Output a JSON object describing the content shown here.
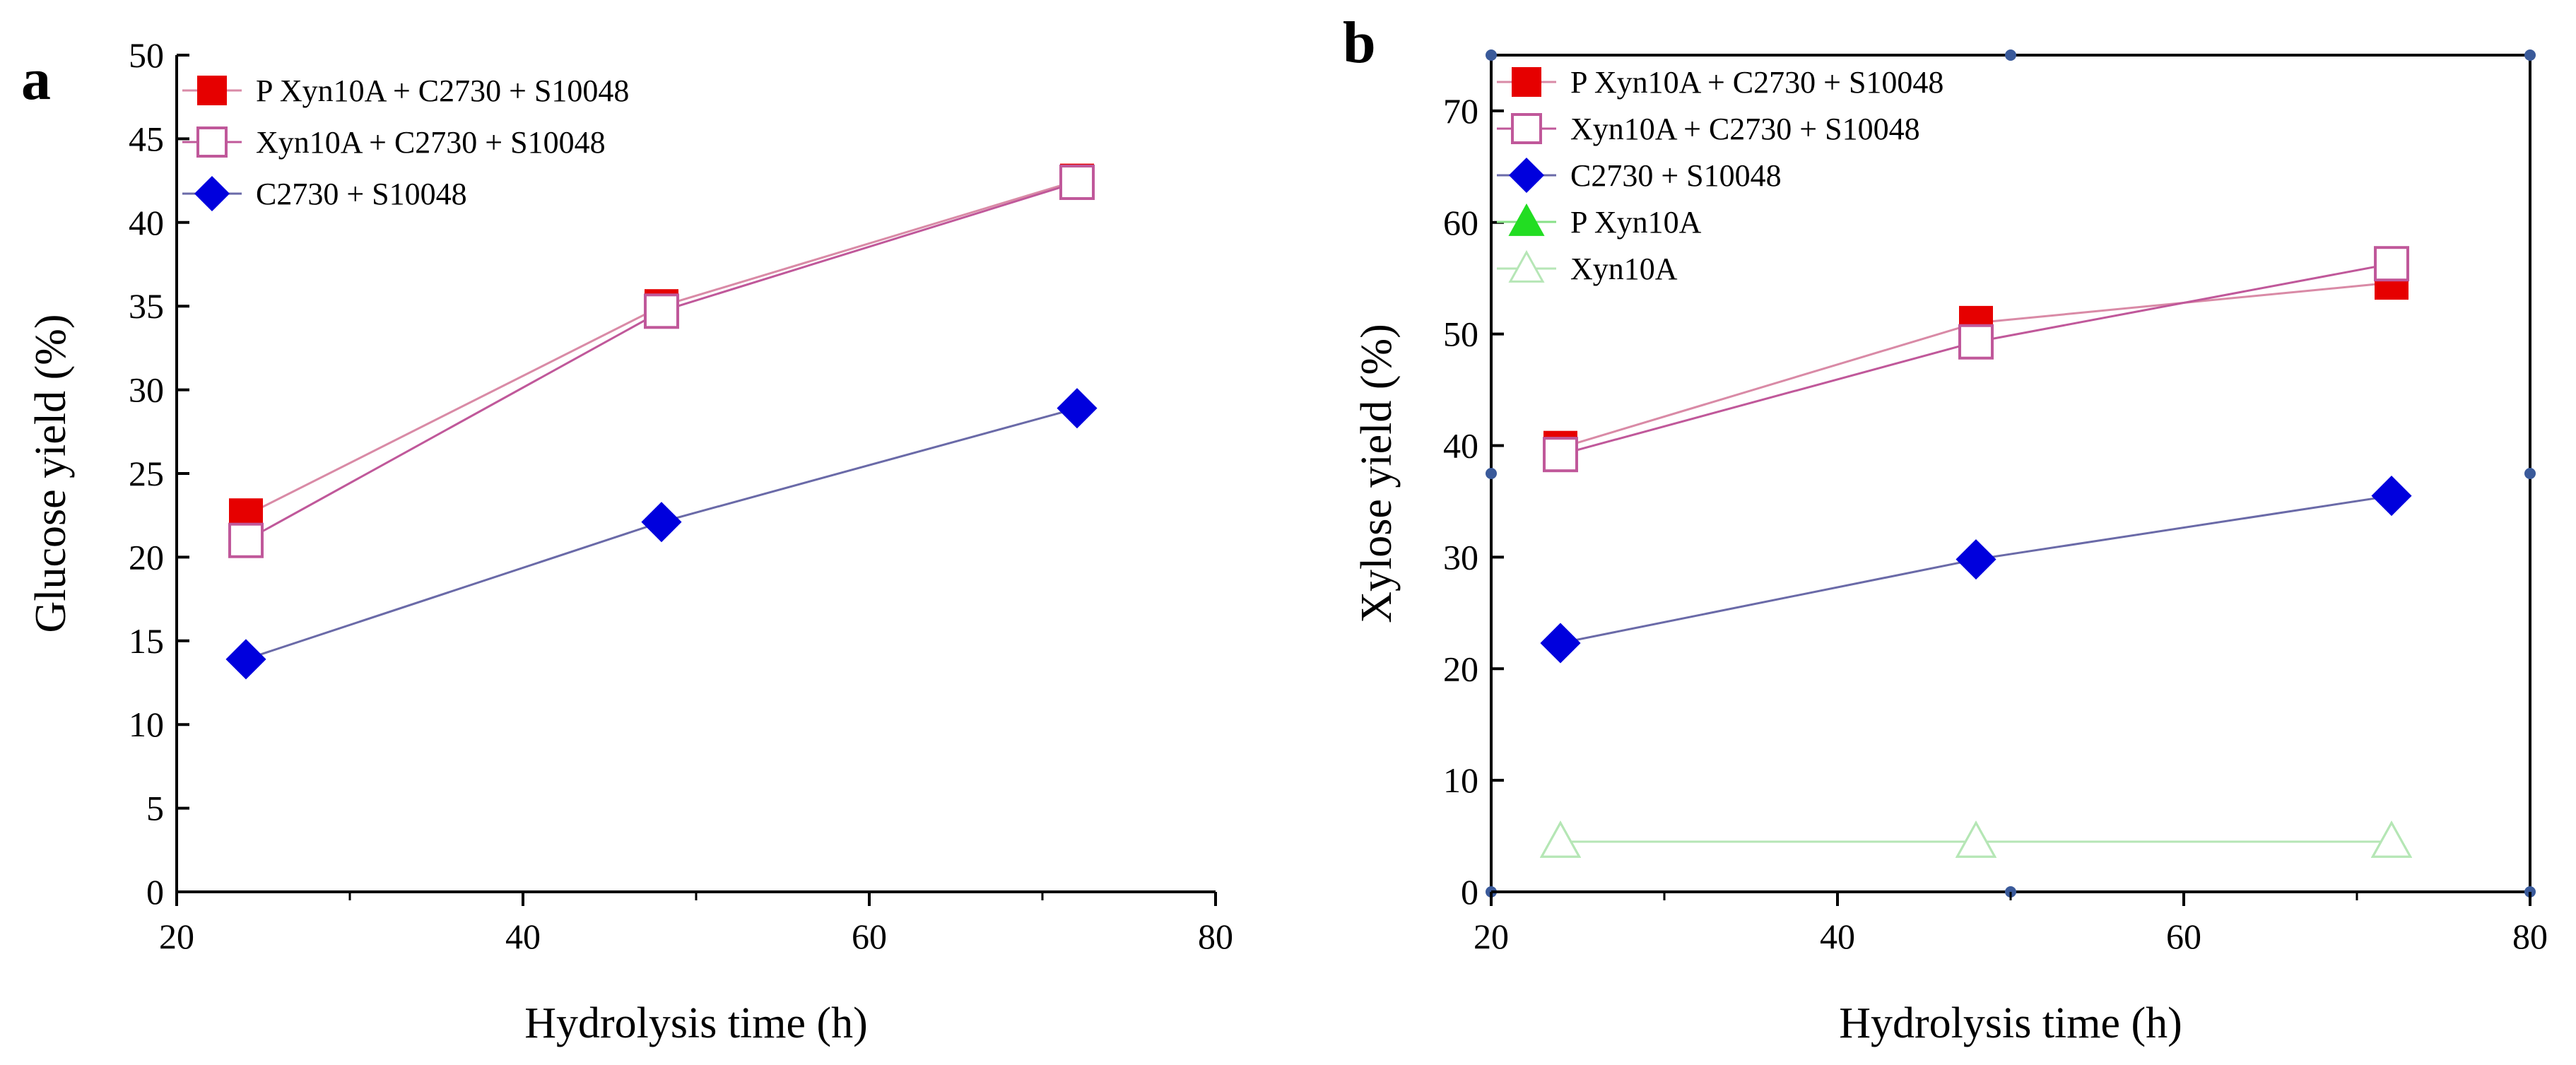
{
  "colors": {
    "red": "#e60000",
    "pink": "#c0589a",
    "blue": "#0000dd",
    "blue_line": "#6a6aa8",
    "green": "#22dd22",
    "green_line": "#88e088",
    "light_green": "#b6e6b6"
  },
  "chart_data": [
    {
      "type": "line",
      "panel_label": "a",
      "xlabel": "Hydrolysis time (h)",
      "ylabel": "Glucose yield (%)",
      "xlim": [
        20,
        80
      ],
      "ylim": [
        0,
        50
      ],
      "xticks": [
        "20",
        "40",
        "60",
        "80"
      ],
      "yticks": [
        "0",
        "5",
        "10",
        "15",
        "20",
        "25",
        "30",
        "35",
        "40",
        "45",
        "50"
      ],
      "legend_position": "top-left",
      "grid": false,
      "series": [
        {
          "name": "P Xyn10A + C2730 + S10048",
          "x": [
            24,
            48,
            72
          ],
          "y": [
            22.5,
            35.0,
            42.5
          ],
          "marker": "square-filled",
          "color": "#e60000",
          "line_color": "#d98aa6"
        },
        {
          "name": "Xyn10A + C2730 + S10048",
          "x": [
            24,
            48,
            72
          ],
          "y": [
            21.0,
            34.7,
            42.4
          ],
          "marker": "square-open",
          "color": "#c0589a",
          "line_color": "#c0589a"
        },
        {
          "name": "C2730 + S10048",
          "x": [
            24,
            48,
            72
          ],
          "y": [
            13.9,
            22.1,
            28.9
          ],
          "marker": "diamond-filled",
          "color": "#0000dd",
          "line_color": "#6a6aa8"
        }
      ]
    },
    {
      "type": "line",
      "panel_label": "b",
      "xlabel": "Hydrolysis time (h)",
      "ylabel": "Xylose yield (%)",
      "xlim": [
        20,
        80
      ],
      "ylim": [
        0,
        75
      ],
      "xticks": [
        "20",
        "40",
        "60",
        "80"
      ],
      "yticks": [
        "0",
        "10",
        "20",
        "30",
        "40",
        "50",
        "60",
        "70"
      ],
      "legend_position": "top-left",
      "grid": false,
      "series": [
        {
          "name": "P Xyn10A + C2730 + S10048",
          "x": [
            24,
            48,
            72
          ],
          "y": [
            39.8,
            51.0,
            54.6
          ],
          "marker": "square-filled",
          "color": "#e60000",
          "line_color": "#d98aa6"
        },
        {
          "name": "Xyn10A + C2730 + S10048",
          "x": [
            24,
            48,
            72
          ],
          "y": [
            39.2,
            49.3,
            56.3
          ],
          "marker": "square-open",
          "color": "#c0589a",
          "line_color": "#c0589a"
        },
        {
          "name": "C2730 + S10048",
          "x": [
            24,
            48,
            72
          ],
          "y": [
            22.3,
            29.8,
            35.5
          ],
          "marker": "diamond-filled",
          "color": "#0000dd",
          "line_color": "#6a6aa8"
        },
        {
          "name": "P Xyn10A",
          "x": [
            24,
            48,
            72
          ],
          "y": [
            4.5,
            4.5,
            4.5
          ],
          "marker": "triangle-filled",
          "color": "#22dd22",
          "line_color": "#88e088"
        },
        {
          "name": "Xyn10A",
          "x": [
            24,
            48,
            72
          ],
          "y": [
            4.5,
            4.5,
            4.5
          ],
          "marker": "triangle-open",
          "color": "#b6e6b6",
          "line_color": "#b6e6b6"
        }
      ]
    }
  ]
}
